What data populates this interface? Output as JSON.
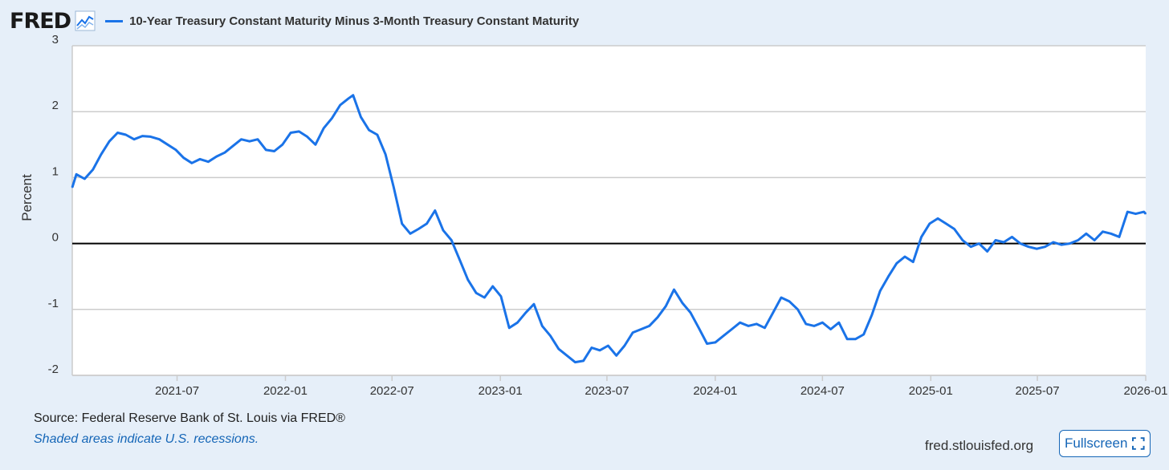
{
  "header": {
    "logo_text": "FRED",
    "logo_icon": "line-chart-icon",
    "series_label": "10-Year Treasury Constant Maturity Minus 3-Month Treasury Constant Maturity"
  },
  "footer": {
    "source": "Source: Federal Reserve Bank of St. Louis via FRED®",
    "recession_note": "Shaded areas indicate U.S. recessions.",
    "site": "fred.stlouisfed.org",
    "fullscreen_label": "Fullscreen",
    "fullscreen_icon": "expand-icon"
  },
  "colors": {
    "background": "#e6eff9",
    "plot_background": "#ffffff",
    "series": "#1a73e8",
    "zero_line": "#000000",
    "grid": "#cccccc"
  },
  "chart_data": {
    "type": "line",
    "ylabel": "Percent",
    "ylim": [
      -2,
      3
    ],
    "yticks": [
      "3",
      "2",
      "1",
      "0",
      "-1",
      "-2"
    ],
    "xlim": [
      "2021-01-04",
      "2026-01-01"
    ],
    "xticks": [
      {
        "date": "2021-07-01",
        "label": "2021-07"
      },
      {
        "date": "2022-01-01",
        "label": "2022-01"
      },
      {
        "date": "2022-07-01",
        "label": "2022-07"
      },
      {
        "date": "2023-01-01",
        "label": "2023-01"
      },
      {
        "date": "2023-07-01",
        "label": "2023-07"
      },
      {
        "date": "2024-01-01",
        "label": "2024-01"
      },
      {
        "date": "2024-07-01",
        "label": "2024-07"
      },
      {
        "date": "2025-01-01",
        "label": "2025-01"
      },
      {
        "date": "2025-07-01",
        "label": "2025-07"
      },
      {
        "date": "2026-01-01",
        "label": "2026-01"
      }
    ],
    "grid": true,
    "reference_line": 0,
    "series": [
      {
        "name": "10-Year Treasury Constant Maturity Minus 3-Month Treasury Constant Maturity",
        "points": [
          [
            "2021-01-04",
            0.85
          ],
          [
            "2021-01-11",
            1.05
          ],
          [
            "2021-01-25",
            0.98
          ],
          [
            "2021-02-08",
            1.12
          ],
          [
            "2021-02-22",
            1.35
          ],
          [
            "2021-03-08",
            1.55
          ],
          [
            "2021-03-22",
            1.68
          ],
          [
            "2021-04-05",
            1.65
          ],
          [
            "2021-04-19",
            1.58
          ],
          [
            "2021-05-03",
            1.63
          ],
          [
            "2021-05-17",
            1.62
          ],
          [
            "2021-06-01",
            1.58
          ],
          [
            "2021-06-15",
            1.5
          ],
          [
            "2021-06-29",
            1.42
          ],
          [
            "2021-07-12",
            1.3
          ],
          [
            "2021-07-26",
            1.22
          ],
          [
            "2021-08-09",
            1.28
          ],
          [
            "2021-08-23",
            1.24
          ],
          [
            "2021-09-06",
            1.32
          ],
          [
            "2021-09-20",
            1.38
          ],
          [
            "2021-10-04",
            1.48
          ],
          [
            "2021-10-18",
            1.58
          ],
          [
            "2021-11-01",
            1.55
          ],
          [
            "2021-11-15",
            1.58
          ],
          [
            "2021-11-29",
            1.42
          ],
          [
            "2021-12-13",
            1.4
          ],
          [
            "2021-12-27",
            1.5
          ],
          [
            "2022-01-10",
            1.68
          ],
          [
            "2022-01-24",
            1.7
          ],
          [
            "2022-02-07",
            1.62
          ],
          [
            "2022-02-21",
            1.5
          ],
          [
            "2022-03-07",
            1.75
          ],
          [
            "2022-03-21",
            1.9
          ],
          [
            "2022-04-04",
            2.1
          ],
          [
            "2022-04-18",
            2.2
          ],
          [
            "2022-04-26",
            2.25
          ],
          [
            "2022-05-09",
            1.92
          ],
          [
            "2022-05-23",
            1.72
          ],
          [
            "2022-06-06",
            1.65
          ],
          [
            "2022-06-20",
            1.35
          ],
          [
            "2022-07-04",
            0.85
          ],
          [
            "2022-07-18",
            0.3
          ],
          [
            "2022-08-01",
            0.15
          ],
          [
            "2022-08-15",
            0.22
          ],
          [
            "2022-08-29",
            0.3
          ],
          [
            "2022-09-12",
            0.5
          ],
          [
            "2022-09-26",
            0.2
          ],
          [
            "2022-10-10",
            0.05
          ],
          [
            "2022-10-24",
            -0.25
          ],
          [
            "2022-11-07",
            -0.55
          ],
          [
            "2022-11-21",
            -0.75
          ],
          [
            "2022-12-05",
            -0.82
          ],
          [
            "2022-12-19",
            -0.65
          ],
          [
            "2023-01-02",
            -0.8
          ],
          [
            "2023-01-16",
            -1.28
          ],
          [
            "2023-01-30",
            -1.2
          ],
          [
            "2023-02-13",
            -1.05
          ],
          [
            "2023-02-27",
            -0.92
          ],
          [
            "2023-03-13",
            -1.25
          ],
          [
            "2023-03-27",
            -1.4
          ],
          [
            "2023-04-10",
            -1.6
          ],
          [
            "2023-04-24",
            -1.7
          ],
          [
            "2023-05-08",
            -1.8
          ],
          [
            "2023-05-22",
            -1.78
          ],
          [
            "2023-06-05",
            -1.58
          ],
          [
            "2023-06-19",
            -1.62
          ],
          [
            "2023-07-03",
            -1.55
          ],
          [
            "2023-07-17",
            -1.7
          ],
          [
            "2023-07-31",
            -1.55
          ],
          [
            "2023-08-14",
            -1.35
          ],
          [
            "2023-08-28",
            -1.3
          ],
          [
            "2023-09-11",
            -1.25
          ],
          [
            "2023-09-25",
            -1.12
          ],
          [
            "2023-10-09",
            -0.95
          ],
          [
            "2023-10-23",
            -0.7
          ],
          [
            "2023-11-06",
            -0.9
          ],
          [
            "2023-11-20",
            -1.05
          ],
          [
            "2023-12-04",
            -1.28
          ],
          [
            "2023-12-18",
            -1.52
          ],
          [
            "2024-01-01",
            -1.5
          ],
          [
            "2024-01-15",
            -1.4
          ],
          [
            "2024-01-29",
            -1.3
          ],
          [
            "2024-02-12",
            -1.2
          ],
          [
            "2024-02-26",
            -1.25
          ],
          [
            "2024-03-11",
            -1.22
          ],
          [
            "2024-03-25",
            -1.28
          ],
          [
            "2024-04-08",
            -1.05
          ],
          [
            "2024-04-22",
            -0.82
          ],
          [
            "2024-05-06",
            -0.88
          ],
          [
            "2024-05-20",
            -1.0
          ],
          [
            "2024-06-03",
            -1.22
          ],
          [
            "2024-06-17",
            -1.25
          ],
          [
            "2024-07-01",
            -1.2
          ],
          [
            "2024-07-15",
            -1.3
          ],
          [
            "2024-07-29",
            -1.2
          ],
          [
            "2024-08-12",
            -1.45
          ],
          [
            "2024-08-26",
            -1.45
          ],
          [
            "2024-09-09",
            -1.38
          ],
          [
            "2024-09-23",
            -1.08
          ],
          [
            "2024-10-07",
            -0.72
          ],
          [
            "2024-10-21",
            -0.5
          ],
          [
            "2024-11-04",
            -0.3
          ],
          [
            "2024-11-18",
            -0.2
          ],
          [
            "2024-12-02",
            -0.28
          ],
          [
            "2024-12-16",
            0.1
          ],
          [
            "2024-12-30",
            0.3
          ],
          [
            "2025-01-13",
            0.38
          ],
          [
            "2025-01-27",
            0.3
          ],
          [
            "2025-02-10",
            0.22
          ],
          [
            "2025-02-24",
            0.05
          ],
          [
            "2025-03-10",
            -0.05
          ],
          [
            "2025-03-24",
            0.0
          ],
          [
            "2025-04-07",
            -0.12
          ],
          [
            "2025-04-21",
            0.05
          ],
          [
            "2025-05-05",
            0.02
          ],
          [
            "2025-05-19",
            0.1
          ],
          [
            "2025-06-02",
            0.0
          ],
          [
            "2025-06-16",
            -0.05
          ],
          [
            "2025-06-30",
            -0.08
          ],
          [
            "2025-07-14",
            -0.05
          ],
          [
            "2025-07-28",
            0.02
          ],
          [
            "2025-08-11",
            -0.02
          ],
          [
            "2025-08-25",
            0.0
          ],
          [
            "2025-09-08",
            0.05
          ],
          [
            "2025-09-22",
            0.15
          ],
          [
            "2025-10-06",
            0.05
          ],
          [
            "2025-10-20",
            0.18
          ],
          [
            "2025-11-03",
            0.15
          ],
          [
            "2025-11-17",
            0.1
          ],
          [
            "2025-12-01",
            0.48
          ],
          [
            "2025-12-15",
            0.45
          ],
          [
            "2025-12-29",
            0.48
          ],
          [
            "2026-01-01",
            0.45
          ]
        ]
      }
    ]
  }
}
